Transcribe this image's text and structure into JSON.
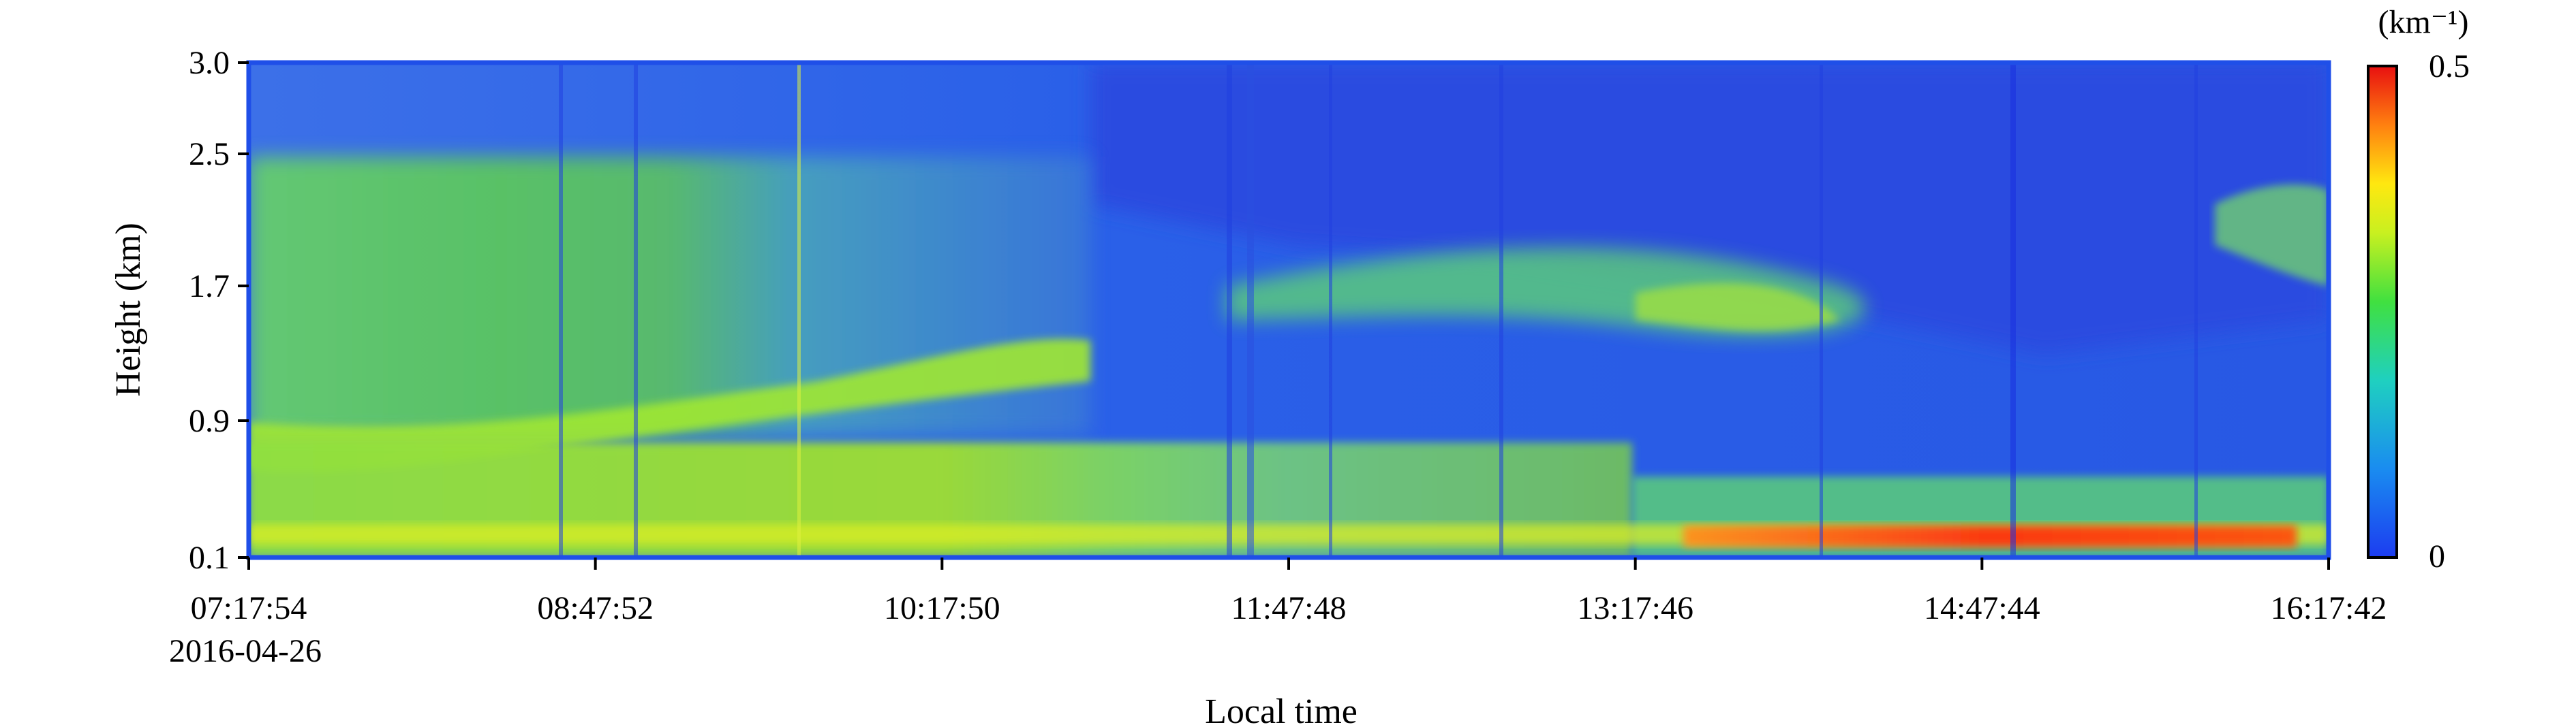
{
  "chart_data": {
    "type": "heatmap",
    "xlabel": "Local time",
    "ylabel": "Height (km)",
    "x_ticks": [
      "07:17:54",
      "08:47:52",
      "10:17:50",
      "11:47:48",
      "13:17:46",
      "14:47:44",
      "16:17:42"
    ],
    "x_date": "2016-04-26",
    "y_ticks": [
      "0.1",
      "0.9",
      "1.7",
      "2.5",
      "3.0"
    ],
    "colorbar": {
      "unit": "(km⁻¹)",
      "max_label": "0.5",
      "min_label": "0",
      "min": 0,
      "max": 0.5,
      "colormap": "jet"
    },
    "colors": {
      "frame": "#1f4fe8",
      "low": "#2a5ce0",
      "high": "#e01010"
    }
  }
}
